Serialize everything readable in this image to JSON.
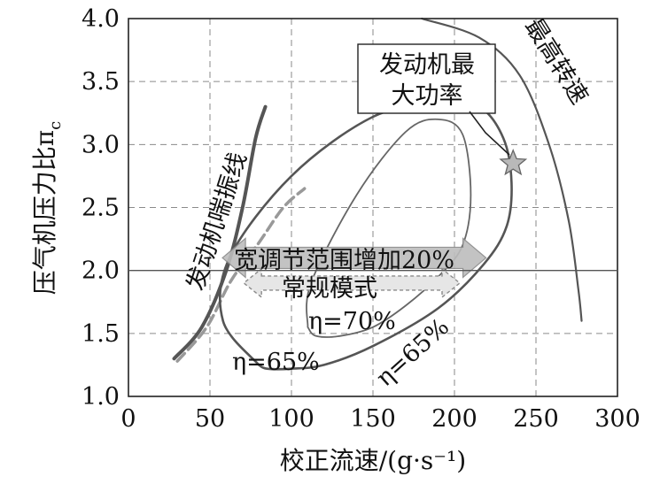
{
  "chart_data": {
    "type": "line",
    "xlabel": "校正流速/(g·s⁻¹)",
    "ylabel": "压气机压力比π",
    "ylabel_sub": "c",
    "xlim": [
      0,
      300
    ],
    "ylim": [
      1.0,
      4.0
    ],
    "x_ticks": [
      "0",
      "50",
      "100",
      "150",
      "200",
      "250",
      "300"
    ],
    "y_ticks": [
      "1.0",
      "1.5",
      "2.0",
      "2.5",
      "3.0",
      "3.5",
      "4.0"
    ],
    "grid": true,
    "annotations": {
      "engine_max_power_line1": "发动机最",
      "engine_max_power_line2": "大功率",
      "max_speed": "最高转速",
      "surge": "发动机喘振线",
      "wide_range": "宽调节范围增加20%",
      "normal_mode": "常规模式",
      "eta70": "η=70%",
      "eta65_left": "η=65%",
      "eta65_right": "η=65%"
    },
    "series": [
      {
        "role": "surge line (solid)",
        "x": [
          28,
          45,
          60,
          70,
          78,
          84
        ],
        "y": [
          1.3,
          1.55,
          2.0,
          2.5,
          3.05,
          3.3
        ]
      },
      {
        "role": "surge line (dashed, normal mode)",
        "x": [
          30,
          48,
          63,
          80,
          95,
          108
        ],
        "y": [
          1.28,
          1.55,
          1.92,
          2.22,
          2.5,
          2.65
        ]
      },
      {
        "role": "max speed line",
        "x": [
          180,
          215,
          240,
          258,
          270,
          276,
          278
        ],
        "y": [
          4.0,
          3.85,
          3.55,
          3.0,
          2.4,
          1.85,
          1.6
        ]
      },
      {
        "role": "η=65% contour",
        "x": [
          80,
          58,
          62,
          100,
          150,
          190,
          215,
          230,
          235,
          232,
          218,
          190,
          150,
          120,
          100,
          85,
          80
        ],
        "y": [
          1.25,
          1.6,
          2.1,
          2.75,
          3.22,
          3.32,
          3.3,
          3.05,
          2.7,
          2.35,
          2.05,
          1.7,
          1.4,
          1.25,
          1.22,
          1.22,
          1.25
        ]
      },
      {
        "role": "η=70% contour",
        "x": [
          110,
          112,
          140,
          170,
          190,
          205,
          210,
          205,
          190,
          170,
          150,
          130,
          115,
          110
        ],
        "y": [
          1.55,
          1.9,
          2.6,
          3.1,
          3.2,
          3.08,
          2.6,
          2.2,
          1.95,
          1.72,
          1.55,
          1.48,
          1.48,
          1.55
        ]
      }
    ],
    "marker": {
      "role": "engine max power",
      "x": 236,
      "y": 2.85
    }
  }
}
